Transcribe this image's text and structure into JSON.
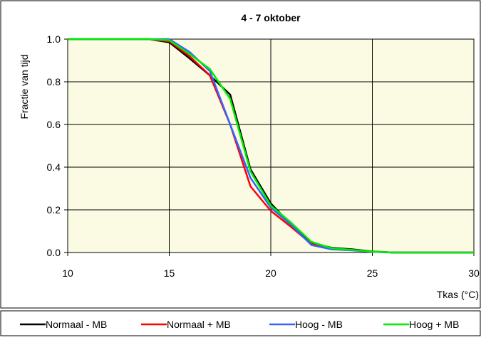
{
  "chart_data": {
    "type": "line",
    "title": "4 - 7 oktober",
    "xlabel": "Tkas (°C)",
    "ylabel": "Fractie van tijd",
    "xlim": [
      10,
      30
    ],
    "ylim": [
      0,
      1.0
    ],
    "x_ticks": [
      "10",
      "15",
      "20",
      "25",
      "30"
    ],
    "y_ticks": [
      "0.0",
      "0.2",
      "0.4",
      "0.6",
      "0.8",
      "1.0"
    ],
    "grid": true,
    "legend_position": "bottom",
    "colors": {
      "plot_background": "#fbfbe3",
      "outer_background": "#ffffff",
      "grid": "#000000"
    },
    "series": [
      {
        "name": "Normaal - MB",
        "color": "#000000",
        "x": [
          10,
          14,
          15,
          16,
          17,
          18,
          19,
          20,
          21,
          22,
          23,
          24,
          25,
          26,
          30
        ],
        "y": [
          1.0,
          1.0,
          0.985,
          0.91,
          0.83,
          0.74,
          0.39,
          0.23,
          0.13,
          0.045,
          0.022,
          0.015,
          0.005,
          0.0,
          0.0
        ]
      },
      {
        "name": "Normaal + MB",
        "color": "#ff0000",
        "x": [
          10,
          14,
          15,
          16,
          17,
          18,
          19,
          20,
          21,
          22,
          23,
          24,
          25,
          26,
          30
        ],
        "y": [
          1.0,
          1.0,
          0.99,
          0.92,
          0.83,
          0.6,
          0.31,
          0.195,
          0.12,
          0.04,
          0.018,
          0.012,
          0.004,
          0.0,
          0.0
        ]
      },
      {
        "name": "Hoog - MB",
        "color": "#3366ff",
        "x": [
          10,
          14,
          15,
          16,
          17,
          18,
          19,
          20,
          21,
          22,
          23,
          24,
          25,
          26,
          30
        ],
        "y": [
          1.0,
          1.0,
          1.0,
          0.94,
          0.85,
          0.6,
          0.35,
          0.21,
          0.13,
          0.035,
          0.015,
          0.01,
          0.003,
          0.0,
          0.0
        ]
      },
      {
        "name": "Hoog + MB",
        "color": "#00ee00",
        "x": [
          10,
          14,
          15,
          16,
          17,
          18,
          19,
          20,
          21,
          22,
          23,
          24,
          25,
          26,
          30
        ],
        "y": [
          1.0,
          1.0,
          0.995,
          0.93,
          0.86,
          0.72,
          0.38,
          0.22,
          0.14,
          0.05,
          0.02,
          0.012,
          0.004,
          0.0,
          0.0
        ]
      }
    ]
  }
}
